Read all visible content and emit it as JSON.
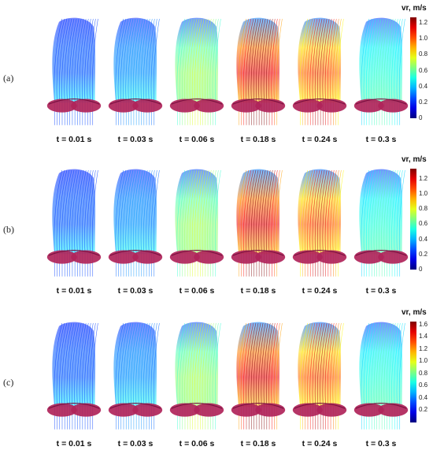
{
  "colorbar_title": "vr, m/s",
  "frame_times": [
    "t = 0.01 s",
    "t = 0.03 s",
    "t = 0.06 s",
    "t = 0.18 s",
    "t = 0.24 s",
    "t = 0.3 s"
  ],
  "rows": [
    {
      "label": "(a)",
      "cbar_ticks": [
        "1.2",
        "1.0",
        "0.8",
        "0.6",
        "0.4",
        "0.2",
        "0"
      ],
      "cbar_max": 1.27
    },
    {
      "label": "(b)",
      "cbar_ticks": [
        "1.2",
        "1.0",
        "0.8",
        "0.6",
        "0.4",
        "0.2",
        "0"
      ],
      "cbar_max": 1.33
    },
    {
      "label": "(c)",
      "cbar_ticks": [
        "1.6",
        "1.4",
        "1.2",
        "1.0",
        "0.8",
        "0.6",
        "0.4",
        "0.2"
      ],
      "cbar_max": 1.65
    }
  ],
  "colors": {
    "valve": "#b0245a",
    "low": "#2b2bbf",
    "high": "#b00020"
  }
}
